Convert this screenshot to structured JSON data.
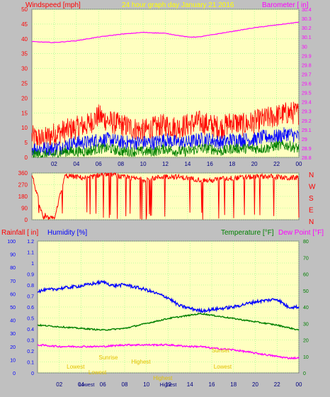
{
  "header": {
    "left_label": "Windspeed [mph]",
    "title": "24 hour graph day   January 21 2016",
    "right_label": "Barometer [ in]"
  },
  "colors": {
    "background": "#c0c0c0",
    "plot": "#ffffc0",
    "grid": "#80ff80",
    "red": "#ff0000",
    "blue": "#0000ff",
    "green": "#008000",
    "magenta": "#ff00ff",
    "yellow": "#ffff00"
  },
  "x_ticks": [
    "02",
    "04",
    "06",
    "08",
    "10",
    "12",
    "14",
    "16",
    "18",
    "20",
    "22",
    "00"
  ],
  "wind_chart": {
    "type": "line",
    "yaxis_left": {
      "min": 0,
      "max": 50,
      "ticks": [
        "0",
        "5",
        "10",
        "15",
        "20",
        "25",
        "30",
        "35",
        "40",
        "45",
        "50"
      ]
    },
    "yaxis_right": {
      "min": 28.8,
      "max": 30.4,
      "ticks": [
        "28.8",
        "28.9",
        "29",
        "29.1",
        "29.2",
        "29.3",
        "29.4",
        "29.5",
        "29.6",
        "29.7",
        "29.8",
        "29.9",
        "30",
        "30.1",
        "30.2",
        "30.3",
        "30.4"
      ]
    },
    "series": [
      {
        "key": "barometer",
        "color": "#ff00ff",
        "x": [
          0,
          2,
          4,
          6,
          8,
          10,
          12,
          13,
          14,
          15,
          16,
          18,
          20,
          22,
          24
        ],
        "y": [
          30.05,
          30.04,
          30.06,
          30.1,
          30.13,
          30.15,
          30.14,
          30.12,
          30.1,
          30.1,
          30.12,
          30.16,
          30.2,
          30.23,
          30.26
        ]
      },
      {
        "key": "gust",
        "color": "#ff0000",
        "x": [
          0,
          1,
          2,
          3,
          4,
          5,
          6,
          7,
          8,
          9,
          10,
          11,
          12,
          13,
          14,
          15,
          16,
          17,
          18,
          19,
          20,
          21,
          22,
          23,
          24
        ],
        "y": [
          7,
          6,
          8,
          9,
          10,
          11,
          14,
          12,
          11,
          10,
          9,
          10,
          11,
          10,
          11,
          12,
          11,
          10,
          12,
          11,
          12,
          13,
          14,
          15,
          15
        ]
      },
      {
        "key": "average",
        "color": "#0000ff",
        "x": [
          0,
          1,
          2,
          3,
          4,
          5,
          6,
          7,
          8,
          9,
          10,
          11,
          12,
          13,
          14,
          15,
          16,
          17,
          18,
          19,
          20,
          21,
          22,
          23,
          24
        ],
        "y": [
          3,
          3,
          3,
          4,
          5,
          5,
          6,
          6,
          5,
          5,
          5,
          5,
          6,
          5,
          5,
          6,
          6,
          5,
          6,
          6,
          6,
          7,
          7,
          8,
          7
        ]
      },
      {
        "key": "lull",
        "color": "#008000",
        "x": [
          0,
          1,
          2,
          3,
          4,
          5,
          6,
          7,
          8,
          9,
          10,
          11,
          12,
          13,
          14,
          15,
          16,
          17,
          18,
          19,
          20,
          21,
          22,
          23,
          24
        ],
        "y": [
          1,
          1,
          1,
          2,
          2,
          2,
          3,
          3,
          2,
          2,
          2,
          2,
          3,
          2,
          2,
          3,
          3,
          2,
          3,
          3,
          3,
          3,
          4,
          4,
          3
        ]
      }
    ]
  },
  "direction_chart": {
    "type": "line",
    "yaxis": {
      "min": 0,
      "max": 360,
      "ticks": [
        "0",
        "90",
        "180",
        "270",
        "360"
      ]
    },
    "compass": [
      "N",
      "W",
      "S",
      "E",
      "N"
    ],
    "series": [
      {
        "key": "direction",
        "color": "#ff0000",
        "x": [
          0,
          1,
          2,
          3,
          4,
          5,
          6,
          7,
          8,
          9,
          10,
          11,
          12,
          13,
          14,
          15,
          16,
          17,
          18,
          19,
          20,
          21,
          22,
          23,
          24
        ],
        "y": [
          350,
          15,
          10,
          340,
          330,
          320,
          345,
          355,
          330,
          320,
          310,
          320,
          335,
          330,
          320,
          310,
          300,
          315,
          320,
          325,
          330,
          335,
          330,
          320,
          325
        ]
      }
    ]
  },
  "bottom_chart": {
    "type": "line",
    "labels": {
      "rainfall": "Rainfall [ in]",
      "humidity": "Humidity [%]",
      "temperature": "Temperature [°F]",
      "dewpoint": "Dew Point [°F]"
    },
    "yaxis_humidity": {
      "min": 0,
      "max": 100,
      "ticks": [
        "0",
        "10",
        "20",
        "30",
        "40",
        "50",
        "60",
        "70",
        "80",
        "90",
        "100"
      ]
    },
    "yaxis_rain": {
      "min": 0,
      "max": 1.2,
      "ticks": [
        "0",
        "0.1",
        "0.2",
        "0.3",
        "0.4",
        "0.5",
        "0.6",
        "0.7",
        "0.8",
        "0.9",
        "1",
        "1.1",
        "1.2"
      ]
    },
    "yaxis_temp": {
      "min": 0,
      "max": 80,
      "ticks": [
        "0",
        "10",
        "20",
        "30",
        "40",
        "50",
        "60",
        "70",
        "80"
      ]
    },
    "series": [
      {
        "key": "humidity",
        "color": "#0000ff",
        "x": [
          0,
          2,
          4,
          6,
          7,
          8,
          10,
          12,
          13,
          14,
          15,
          16,
          18,
          20,
          22,
          23,
          24
        ],
        "y": [
          62,
          64,
          66,
          69,
          66,
          67,
          63,
          57,
          51,
          49,
          47,
          48,
          50,
          54,
          56,
          50,
          50
        ]
      },
      {
        "key": "temperature",
        "color": "#008000",
        "x": [
          0,
          2,
          4,
          6,
          8,
          10,
          12,
          14,
          15,
          16,
          18,
          20,
          22,
          24
        ],
        "y": [
          29,
          28,
          27,
          26,
          27,
          30,
          33,
          35,
          36,
          35,
          33,
          31,
          29,
          26
        ]
      },
      {
        "key": "dewpoint",
        "color": "#ff00ff",
        "x": [
          0,
          2,
          4,
          6,
          8,
          10,
          12,
          14,
          15,
          16,
          18,
          20,
          22,
          23,
          24
        ],
        "y": [
          17,
          16,
          16,
          16,
          17,
          17,
          17,
          16,
          16,
          15,
          14,
          12,
          10,
          9,
          9
        ]
      }
    ],
    "annotations": [
      {
        "text": "Sunrise",
        "hour": 6.5
      },
      {
        "text": "Sunset",
        "hour": 16.8
      },
      {
        "text": "Lowest",
        "hour": 3.5
      },
      {
        "text": "Highest",
        "hour": 9.5
      },
      {
        "text": "Lowest",
        "hour": 5.5
      },
      {
        "text": "Highest",
        "hour": 11.5
      },
      {
        "text": "Lowest",
        "hour": 17.0
      }
    ],
    "bottom_tick_text": [
      "Lowest",
      "Highest"
    ]
  }
}
